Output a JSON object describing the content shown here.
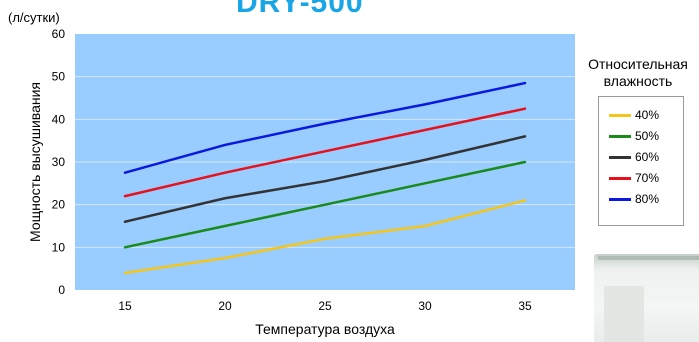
{
  "header": {
    "title_fragment": "DRY-500"
  },
  "chart_data": {
    "type": "line",
    "unit_label": "(л/сутки)",
    "ylabel": "Мощность высушивания",
    "xlabel": "Температура воздуха",
    "x": [
      15,
      20,
      25,
      30,
      35
    ],
    "xlim": [
      12.5,
      37.5
    ],
    "ylim": [
      0,
      60
    ],
    "yticks": [
      0,
      10,
      20,
      30,
      40,
      50,
      60
    ],
    "xticks": [
      15,
      20,
      25,
      30,
      35
    ],
    "grid": true,
    "legend_title": "Относительная влажность",
    "legend_position": "right",
    "series": [
      {
        "name": "40%",
        "color": "#f5c518",
        "values": [
          4,
          7.5,
          12,
          15,
          21
        ]
      },
      {
        "name": "50%",
        "color": "#1a8a1a",
        "values": [
          10,
          15,
          20,
          25,
          30
        ]
      },
      {
        "name": "60%",
        "color": "#333333",
        "values": [
          16,
          21.5,
          25.5,
          30.5,
          36
        ]
      },
      {
        "name": "70%",
        "color": "#e8111b",
        "values": [
          22,
          27.5,
          32.5,
          37.5,
          42.5
        ]
      },
      {
        "name": "80%",
        "color": "#0a18e0",
        "values": [
          27.5,
          34,
          39,
          43.5,
          48.5
        ]
      }
    ]
  }
}
